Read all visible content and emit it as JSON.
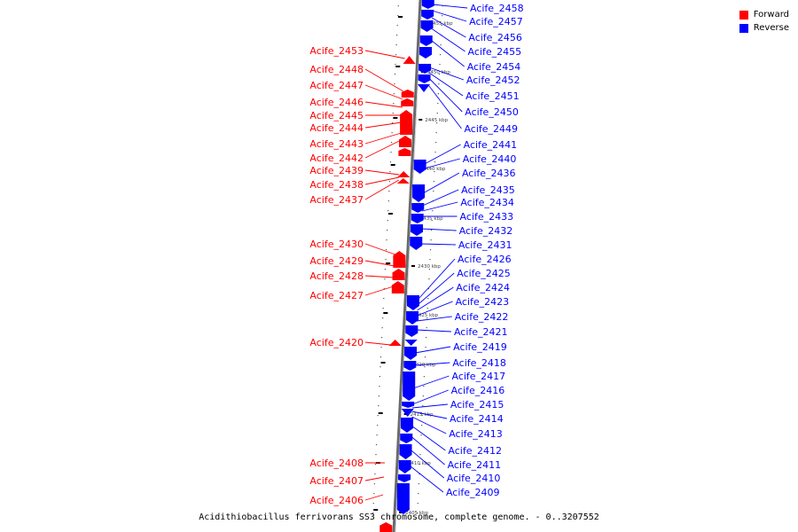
{
  "caption": "Acidithiobacillus ferrivorans SS3 chromosome, complete genome. - 0..3207552",
  "legend": [
    {
      "label": "Forward",
      "color": "#ff0000"
    },
    {
      "label": "Reverse",
      "color": "#0000ff"
    }
  ],
  "colors": {
    "forward": "#ff0000",
    "reverse": "#0000ff",
    "backbone": "#888888",
    "tick": "#000000"
  },
  "scale_labels": [
    {
      "text": "2455 kbp",
      "pos": 2455
    },
    {
      "text": "2450 kbp",
      "pos": 2450
    },
    {
      "text": "2445 kbp",
      "pos": 2445
    },
    {
      "text": "2440 kbp",
      "pos": 2440
    },
    {
      "text": "2435 kbp",
      "pos": 2435
    },
    {
      "text": "2430 kbp",
      "pos": 2430
    },
    {
      "text": "2425 kbp",
      "pos": 2425
    },
    {
      "text": "2420 kbp",
      "pos": 2420
    },
    {
      "text": "2415 kbp",
      "pos": 2415
    },
    {
      "text": "2410 kbp",
      "pos": 2410
    },
    {
      "text": "2405 kbp",
      "pos": 2405
    }
  ],
  "forward_genes": [
    {
      "label": "Acife_2453"
    },
    {
      "label": "Acife_2448"
    },
    {
      "label": "Acife_2447"
    },
    {
      "label": "Acife_2446"
    },
    {
      "label": "Acife_2445"
    },
    {
      "label": "Acife_2444"
    },
    {
      "label": "Acife_2443"
    },
    {
      "label": "Acife_2442"
    },
    {
      "label": "Acife_2439"
    },
    {
      "label": "Acife_2438"
    },
    {
      "label": "Acife_2437"
    },
    {
      "label": "Acife_2430"
    },
    {
      "label": "Acife_2429"
    },
    {
      "label": "Acife_2428"
    },
    {
      "label": "Acife_2427"
    },
    {
      "label": "Acife_2420"
    },
    {
      "label": "Acife_2408"
    },
    {
      "label": "Acife_2407"
    },
    {
      "label": "Acife_2406"
    }
  ],
  "reverse_genes": [
    {
      "label": "Acife_2458"
    },
    {
      "label": "Acife_2457"
    },
    {
      "label": "Acife_2456"
    },
    {
      "label": "Acife_2455"
    },
    {
      "label": "Acife_2454"
    },
    {
      "label": "Acife_2452"
    },
    {
      "label": "Acife_2451"
    },
    {
      "label": "Acife_2450"
    },
    {
      "label": "Acife_2449"
    },
    {
      "label": "Acife_2441"
    },
    {
      "label": "Acife_2440"
    },
    {
      "label": "Acife_2436"
    },
    {
      "label": "Acife_2435"
    },
    {
      "label": "Acife_2434"
    },
    {
      "label": "Acife_2433"
    },
    {
      "label": "Acife_2432"
    },
    {
      "label": "Acife_2431"
    },
    {
      "label": "Acife_2426"
    },
    {
      "label": "Acife_2425"
    },
    {
      "label": "Acife_2424"
    },
    {
      "label": "Acife_2423"
    },
    {
      "label": "Acife_2422"
    },
    {
      "label": "Acife_2421"
    },
    {
      "label": "Acife_2419"
    },
    {
      "label": "Acife_2418"
    },
    {
      "label": "Acife_2417"
    },
    {
      "label": "Acife_2416"
    },
    {
      "label": "Acife_2415"
    },
    {
      "label": "Acife_2414"
    },
    {
      "label": "Acife_2413"
    },
    {
      "label": "Acife_2412"
    },
    {
      "label": "Acife_2411"
    },
    {
      "label": "Acife_2410"
    },
    {
      "label": "Acife_2409"
    }
  ]
}
